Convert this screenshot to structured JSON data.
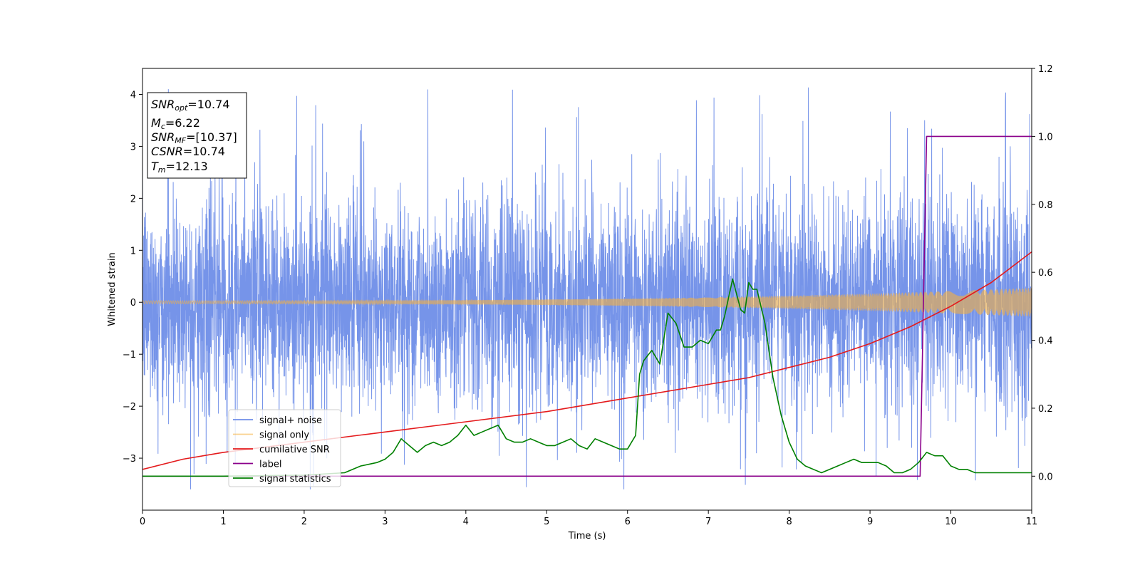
{
  "chart_data": {
    "type": "line",
    "xlabel": "Time (s)",
    "ylabel": "Whitened strain",
    "xlim": [
      0,
      11
    ],
    "ylim_left": [
      -4,
      4.5
    ],
    "ylim_right": [
      -0.1,
      1.2
    ],
    "x_ticks": [
      0,
      1,
      2,
      3,
      4,
      5,
      6,
      7,
      8,
      9,
      10,
      11
    ],
    "y_ticks_left": [
      -3,
      -2,
      -1,
      0,
      1,
      2,
      3,
      4
    ],
    "y_ticks_right": [
      0.0,
      0.2,
      0.4,
      0.6,
      0.8,
      1.0,
      1.2
    ],
    "legend_placement": "lower-left",
    "info_box": {
      "snr_opt": {
        "main": "SNR",
        "sub": "opt",
        "value": "=10.74"
      },
      "mc": {
        "main": "M",
        "sub": "c",
        "value": "=6.22"
      },
      "snr_mf": {
        "main": "SNR",
        "sub": "MF",
        "value": "=[10.37]"
      },
      "csnr": {
        "main": "CSNR",
        "value": "=10.74"
      },
      "tm": {
        "main": "T",
        "sub": "m",
        "value": "=12.13"
      }
    },
    "series": [
      {
        "name": "signal+ noise",
        "axis": "left",
        "color": "#6f8ee8",
        "style": "noise",
        "sigma": 1.0,
        "peak_range": [
          -3.6,
          4.2
        ]
      },
      {
        "name": "signal only",
        "axis": "left",
        "color": "#f5b041",
        "style": "chirp",
        "amplitude_x": [
          0,
          11
        ],
        "amplitude_y": [
          0.03,
          0.28
        ]
      },
      {
        "name": "cumilative SNR",
        "axis": "right",
        "color": "#e41a1c",
        "x": [
          0,
          0.5,
          1,
          2,
          3,
          4,
          5,
          6,
          7,
          7.5,
          8,
          8.5,
          9,
          9.5,
          10,
          10.5,
          11
        ],
        "y": [
          0.02,
          0.05,
          0.07,
          0.1,
          0.13,
          0.16,
          0.19,
          0.23,
          0.27,
          0.29,
          0.32,
          0.35,
          0.39,
          0.44,
          0.5,
          0.57,
          0.66
        ]
      },
      {
        "name": "label",
        "axis": "right",
        "color": "#8b008b",
        "x": [
          0,
          9.62,
          9.7,
          11
        ],
        "y": [
          0.0,
          0.0,
          1.0,
          1.0
        ]
      },
      {
        "name": "signal statistics",
        "axis": "right",
        "color": "#008000",
        "x": [
          0,
          1,
          2,
          2.5,
          2.7,
          2.9,
          3.0,
          3.1,
          3.2,
          3.3,
          3.4,
          3.5,
          3.6,
          3.7,
          3.8,
          3.9,
          4.0,
          4.1,
          4.2,
          4.3,
          4.4,
          4.45,
          4.5,
          4.6,
          4.7,
          4.8,
          4.9,
          5.0,
          5.1,
          5.2,
          5.3,
          5.4,
          5.5,
          5.6,
          5.7,
          5.8,
          5.9,
          6.0,
          6.1,
          6.15,
          6.2,
          6.3,
          6.4,
          6.5,
          6.6,
          6.7,
          6.8,
          6.9,
          7.0,
          7.1,
          7.15,
          7.2,
          7.3,
          7.4,
          7.45,
          7.5,
          7.55,
          7.6,
          7.7,
          7.8,
          7.9,
          8.0,
          8.1,
          8.2,
          8.4,
          8.5,
          8.6,
          8.7,
          8.8,
          8.9,
          9.0,
          9.1,
          9.2,
          9.3,
          9.4,
          9.5,
          9.6,
          9.7,
          9.8,
          9.9,
          10.0,
          10.1,
          10.2,
          10.3,
          10.4,
          10.5,
          10.6,
          10.8,
          11.0
        ],
        "y": [
          0.0,
          0.0,
          0.003,
          0.01,
          0.03,
          0.04,
          0.05,
          0.07,
          0.11,
          0.09,
          0.07,
          0.09,
          0.1,
          0.09,
          0.1,
          0.12,
          0.15,
          0.12,
          0.13,
          0.14,
          0.15,
          0.13,
          0.11,
          0.1,
          0.1,
          0.11,
          0.1,
          0.09,
          0.09,
          0.1,
          0.11,
          0.09,
          0.08,
          0.11,
          0.1,
          0.09,
          0.08,
          0.08,
          0.12,
          0.3,
          0.34,
          0.37,
          0.33,
          0.48,
          0.45,
          0.38,
          0.38,
          0.4,
          0.39,
          0.43,
          0.43,
          0.47,
          0.58,
          0.49,
          0.48,
          0.57,
          0.55,
          0.55,
          0.45,
          0.29,
          0.18,
          0.1,
          0.05,
          0.03,
          0.01,
          0.02,
          0.03,
          0.04,
          0.05,
          0.04,
          0.04,
          0.04,
          0.03,
          0.01,
          0.01,
          0.02,
          0.04,
          0.07,
          0.06,
          0.06,
          0.03,
          0.02,
          0.02,
          0.01,
          0.01,
          0.01,
          0.01,
          0.01,
          0.01
        ]
      }
    ]
  }
}
